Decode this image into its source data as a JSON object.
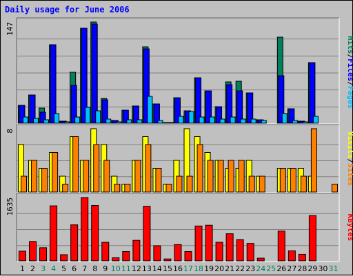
{
  "title": "Daily usage for June 2006",
  "colors": {
    "background": "#c0c0c0",
    "hits": "#00805c",
    "files": "#0000ff",
    "pages": "#00c0ff",
    "visits": "#ffff00",
    "sites": "#ff8000",
    "kbytes": "#ff0000",
    "weekend_label": "#00805c",
    "weekday_label": "#000000"
  },
  "panels": {
    "top": {
      "max_label": "147",
      "legend": [
        {
          "text": "Hits",
          "color": "#00805c"
        },
        {
          "text": "/",
          "color": "#000000"
        },
        {
          "text": "Files",
          "color": "#0000ff"
        },
        {
          "text": "/",
          "color": "#000000"
        },
        {
          "text": "Pages",
          "color": "#00c0ff"
        }
      ]
    },
    "middle": {
      "max_label": "8",
      "legend": [
        {
          "text": "Visits",
          "color": "#ffff00"
        },
        {
          "text": "/",
          "color": "#000000"
        },
        {
          "text": "Sites",
          "color": "#ff8000"
        }
      ]
    },
    "bottom": {
      "max_label": "1635",
      "legend": [
        {
          "text": "KBytes",
          "color": "#ff0000"
        }
      ]
    }
  },
  "chart_data": {
    "type": "bar",
    "title": "Daily usage for June 2006",
    "categories": [
      "1",
      "2",
      "3",
      "4",
      "5",
      "6",
      "7",
      "8",
      "9",
      "10",
      "11",
      "12",
      "13",
      "14",
      "15",
      "16",
      "17",
      "18",
      "19",
      "20",
      "21",
      "22",
      "23",
      "24",
      "25",
      "26",
      "27",
      "28",
      "29",
      "30",
      "31"
    ],
    "weekend_days": [
      "3",
      "4",
      "10",
      "11",
      "17",
      "18",
      "24",
      "25",
      "31"
    ],
    "panels": [
      {
        "name": "hits-files-pages",
        "ylim": [
          0,
          147
        ],
        "series": [
          {
            "name": "Hits",
            "values": [
              26,
              41,
              22,
              114,
              3,
              74,
              138,
              147,
              36,
              4,
              19,
              25,
              111,
              28,
              1,
              37,
              18,
              66,
              47,
              24,
              60,
              61,
              44,
              5,
              0,
              125,
              21,
              3,
              88,
              0,
              0
            ]
          },
          {
            "name": "Files",
            "values": [
              26,
              41,
              16,
              114,
              3,
              55,
              138,
              144,
              34,
              4,
              19,
              25,
              108,
              28,
              1,
              37,
              18,
              66,
              47,
              24,
              56,
              47,
              44,
              5,
              0,
              69,
              21,
              3,
              88,
              0,
              0
            ]
          },
          {
            "name": "Pages",
            "values": [
              9,
              7,
              5,
              14,
              2,
              9,
              23,
              18,
              6,
              2,
              5,
              5,
              39,
              4,
              1,
              10,
              17,
              9,
              9,
              6,
              9,
              6,
              6,
              4,
              0,
              14,
              4,
              2,
              10,
              0,
              0
            ]
          }
        ]
      },
      {
        "name": "visits-sites",
        "ylim": [
          0,
          8
        ],
        "series": [
          {
            "name": "Visits",
            "values": [
              6,
              4,
              3,
              5,
              2,
              7,
              4,
              8,
              6,
              2,
              1,
              4,
              7,
              3,
              1,
              4,
              8,
              7,
              5,
              4,
              3,
              3,
              4,
              2,
              0,
              3,
              3,
              3,
              2,
              0,
              0
            ]
          },
          {
            "name": "Sites",
            "values": [
              2,
              4,
              3,
              5,
              1,
              7,
              4,
              6,
              4,
              1,
              1,
              4,
              6,
              3,
              1,
              2,
              2,
              6,
              4,
              4,
              4,
              4,
              2,
              2,
              0,
              3,
              3,
              2,
              8,
              0,
              1
            ]
          }
        ]
      },
      {
        "name": "kbytes",
        "ylim": [
          0,
          1635
        ],
        "series": [
          {
            "name": "KBytes",
            "values": [
              250,
              500,
              340,
              1420,
              160,
              930,
              1635,
              1430,
              480,
              80,
              240,
              530,
              1410,
              390,
              50,
              420,
              240,
              900,
              920,
              480,
              700,
              550,
              450,
              70,
              0,
              770,
              260,
              170,
              1170,
              0,
              0
            ]
          }
        ]
      }
    ]
  }
}
